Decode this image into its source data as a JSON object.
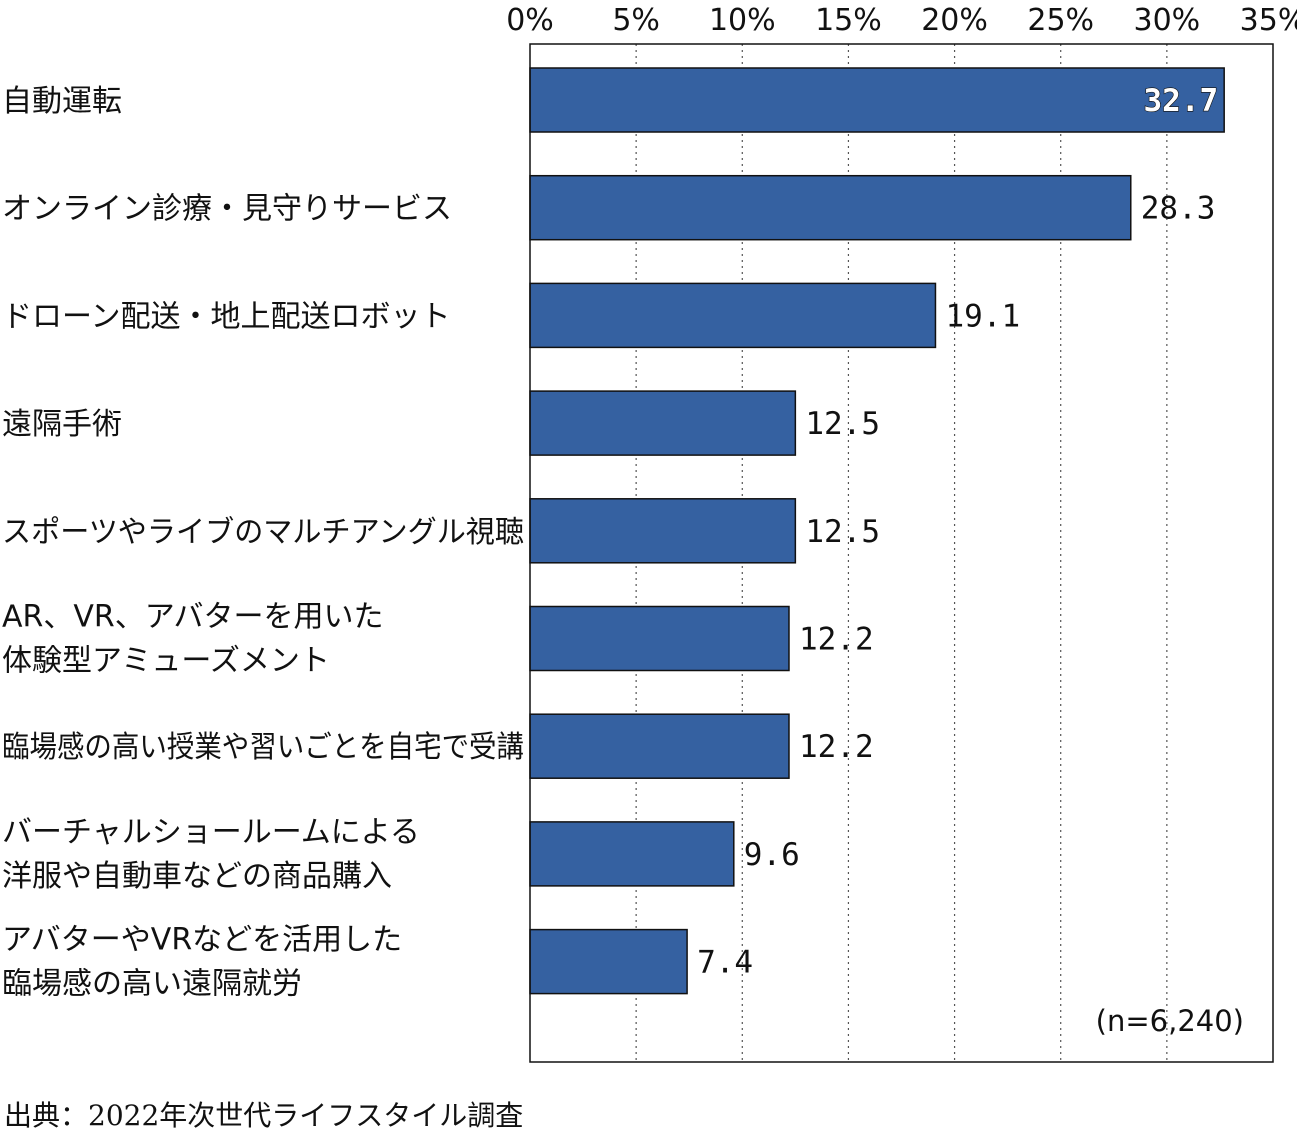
{
  "chart_data": {
    "type": "bar",
    "orientation": "horizontal",
    "categories": [
      [
        "自動運転"
      ],
      [
        "オンライン診療・見守りサービス"
      ],
      [
        "ドローン配送・地上配送ロボット"
      ],
      [
        "遠隔手術"
      ],
      [
        "スポーツやライブのマルチアングル視聴"
      ],
      [
        "AR、VR、アバターを用いた",
        "体験型アミューズメント"
      ],
      [
        "臨場感の高い授業や習いごとを自宅で受講"
      ],
      [
        "バーチャルショールームによる",
        "洋服や自動車などの商品購入"
      ],
      [
        "アバターやVRなどを活用した",
        "臨場感の高い遠隔就労"
      ]
    ],
    "values": [
      32.7,
      28.3,
      19.1,
      12.5,
      12.5,
      12.2,
      12.2,
      9.6,
      7.4
    ],
    "value_labels": [
      "32.7",
      "28.3",
      "19.1",
      "12.5",
      "12.5",
      "12.2",
      "12.2",
      "9.6",
      "7.4"
    ],
    "xlim": [
      0,
      35
    ],
    "ticks": [
      0,
      5,
      10,
      15,
      20,
      25,
      30,
      35
    ],
    "tick_labels": [
      "0%",
      "5%",
      "10%",
      "15%",
      "20%",
      "25%",
      "30%",
      "35%"
    ],
    "grid": "vertical dotted",
    "bar_color": "#3561a1",
    "sample_note": "(n=6,240)"
  },
  "source": "出典：2022年次世代ライフスタイル調査"
}
